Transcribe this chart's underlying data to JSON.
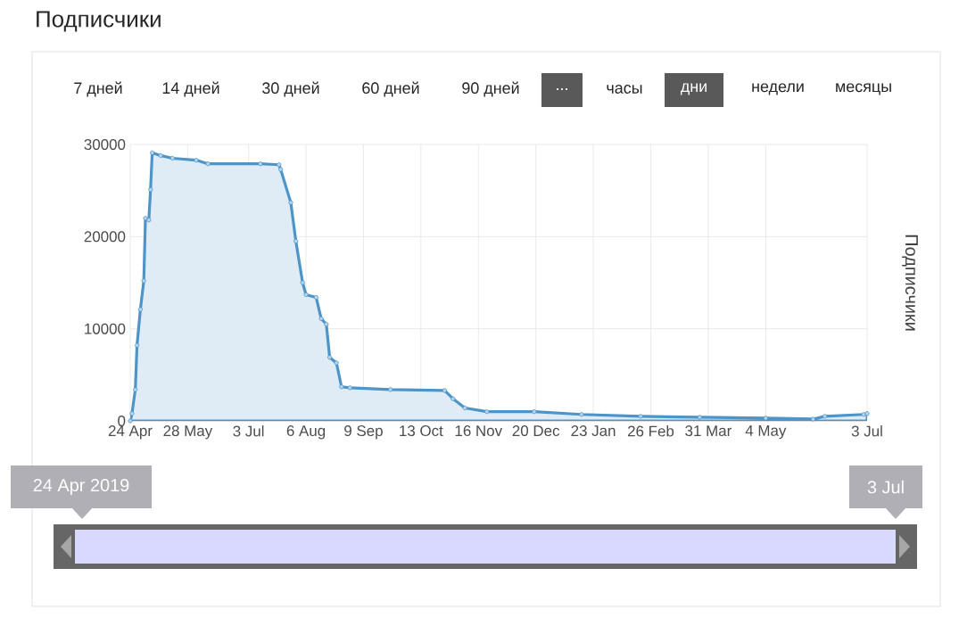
{
  "chart_data": {
    "type": "area",
    "title": "Подписчики",
    "ylabel": "Подписчики",
    "x": [
      "2019-04-24",
      "2019-04-25",
      "2019-04-27",
      "2019-04-28",
      "2019-04-30",
      "2019-05-02",
      "2019-05-03",
      "2019-05-05",
      "2019-05-06",
      "2019-05-07",
      "2019-05-12",
      "2019-05-19",
      "2019-06-02",
      "2019-06-09",
      "2019-07-10",
      "2019-07-21",
      "2019-07-22",
      "2019-07-28",
      "2019-07-31",
      "2019-08-04",
      "2019-08-06",
      "2019-08-12",
      "2019-08-15",
      "2019-08-18",
      "2019-08-20",
      "2019-08-24",
      "2019-08-27",
      "2019-09-01",
      "2019-09-25",
      "2019-10-27",
      "2019-11-01",
      "2019-11-08",
      "2019-11-21",
      "2019-12-19",
      "2020-01-16",
      "2020-02-20",
      "2020-03-26",
      "2020-05-04",
      "2020-06-01",
      "2020-06-08",
      "2020-07-01",
      "2020-07-03"
    ],
    "series": [
      {
        "color": "#4d94c9",
        "values": [
          0,
          800,
          3400,
          8200,
          12100,
          15200,
          22000,
          21800,
          25100,
          29100,
          28800,
          28500,
          28300,
          27900,
          27900,
          27800,
          27300,
          23700,
          19500,
          15000,
          13700,
          13400,
          11100,
          10500,
          6900,
          6300,
          3700,
          3600,
          3400,
          3300,
          2400,
          1400,
          1000,
          1000,
          700,
          500,
          400,
          300,
          200,
          500,
          700,
          800
        ]
      }
    ],
    "xlim": [
      "2019-04-24",
      "2020-07-03"
    ],
    "xticks": [
      {
        "value": "2019-04-24",
        "label": "24 Apr"
      },
      {
        "value": "2019-05-28",
        "label": "28 May"
      },
      {
        "value": "2019-07-03",
        "label": "3 Jul"
      },
      {
        "value": "2019-08-06",
        "label": "6 Aug"
      },
      {
        "value": "2019-09-09",
        "label": "9 Sep"
      },
      {
        "value": "2019-10-13",
        "label": "13 Oct"
      },
      {
        "value": "2019-11-16",
        "label": "16 Nov"
      },
      {
        "value": "2019-12-20",
        "label": "20 Dec"
      },
      {
        "value": "2020-01-23",
        "label": "23 Jan"
      },
      {
        "value": "2020-02-26",
        "label": "26 Feb"
      },
      {
        "value": "2020-03-31",
        "label": "31 Mar"
      },
      {
        "value": "2020-05-04",
        "label": "4 May"
      },
      {
        "value": "2020-07-03",
        "label": "3 Jul"
      }
    ],
    "ylim": [
      0,
      30000
    ],
    "yticks": [
      0,
      10000,
      20000,
      30000
    ],
    "grid": true,
    "marker": "circle",
    "annotations": [
      "7 дней",
      "14 дней",
      "30 дней",
      "60 дней",
      "90 дней",
      "...",
      "часы",
      "дни",
      "недели",
      "месяцы",
      "24 Apr 2019",
      "3 Jul"
    ]
  }
}
